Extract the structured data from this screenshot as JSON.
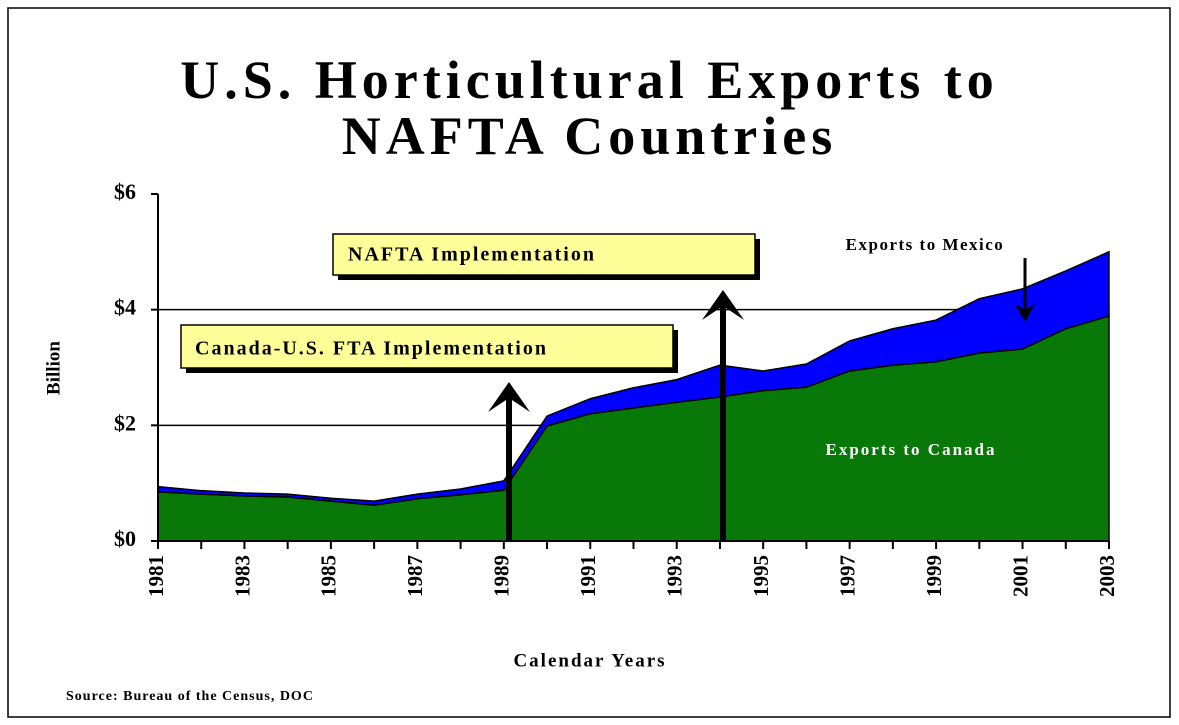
{
  "chart_data": {
    "type": "stacked_area",
    "title": "U.S. Horticultural Exports to NAFTA Countries",
    "y_label": "Billion",
    "x_label": "Calendar Years",
    "source": "Source: Bureau of the Census, DOC",
    "annotations": [
      "NAFTA Implementation",
      "Canada-U.S. FTA Implementation"
    ],
    "x": [
      1981,
      1982,
      1983,
      1984,
      1985,
      1986,
      1987,
      1988,
      1989,
      1990,
      1991,
      1992,
      1993,
      1994,
      1995,
      1996,
      1997,
      1998,
      1999,
      2000,
      2001,
      2002,
      2003
    ],
    "xlim": [
      1981,
      2003
    ],
    "xticks": [
      1981,
      1983,
      1985,
      1987,
      1989,
      1991,
      1993,
      1995,
      1997,
      1999,
      2001,
      2003
    ],
    "ylim": [
      0,
      6
    ],
    "yticks": [
      {
        "value": 0,
        "label": "$0"
      },
      {
        "value": 2,
        "label": "$2"
      },
      {
        "value": 4,
        "label": "$4"
      },
      {
        "value": 6,
        "label": "$6"
      }
    ],
    "grid": true,
    "series": [
      {
        "name": "Exports to Canada",
        "color": "#087808",
        "values": [
          0.85,
          0.81,
          0.78,
          0.76,
          0.69,
          0.62,
          0.73,
          0.8,
          0.88,
          1.99,
          2.2,
          2.3,
          2.4,
          2.49,
          2.6,
          2.66,
          2.94,
          3.04,
          3.1,
          3.25,
          3.32,
          3.67,
          3.89
        ]
      },
      {
        "name": "Exports to Mexico",
        "color": "#0000ff",
        "values": [
          0.09,
          0.06,
          0.05,
          0.05,
          0.05,
          0.07,
          0.08,
          0.1,
          0.16,
          0.17,
          0.26,
          0.35,
          0.39,
          0.55,
          0.34,
          0.4,
          0.52,
          0.63,
          0.72,
          0.94,
          1.04,
          1.0,
          1.11
        ]
      }
    ]
  }
}
